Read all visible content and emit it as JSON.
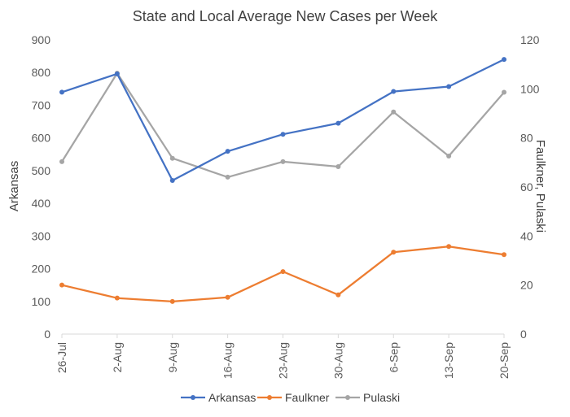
{
  "chart_data": {
    "type": "line",
    "title": "State and Local Average New Cases per Week",
    "categories": [
      "26-Jul",
      "2-Aug",
      "9-Aug",
      "16-Aug",
      "23-Aug",
      "30-Aug",
      "6-Sep",
      "13-Sep",
      "20-Sep"
    ],
    "xlabel": "",
    "ylabel": "Arkansas",
    "y2label": "Faulkner, Pulaski",
    "ylim": [
      0,
      900
    ],
    "y_ticks": [
      0,
      100,
      200,
      300,
      400,
      500,
      600,
      700,
      800,
      900
    ],
    "y2lim": [
      0,
      120
    ],
    "y2_ticks": [
      0,
      20,
      40,
      60,
      80,
      100,
      120
    ],
    "grid": false,
    "legend_position": "bottom",
    "series": [
      {
        "name": "Arkansas",
        "axis": "left",
        "color": "#4472C4",
        "values": [
          740,
          796,
          470,
          559,
          611,
          645,
          742,
          757,
          840
        ]
      },
      {
        "name": "Faulkner",
        "axis": "right",
        "color": "#ED7D31",
        "values": [
          20,
          14.7,
          13.3,
          15,
          25.5,
          16,
          33.4,
          35.7,
          32.4
        ]
      },
      {
        "name": "Pulaski",
        "axis": "right",
        "color": "#A5A5A5",
        "values": [
          70.3,
          106.4,
          71.7,
          64,
          70.3,
          68.3,
          90.6,
          72.6,
          98.6
        ]
      }
    ]
  }
}
